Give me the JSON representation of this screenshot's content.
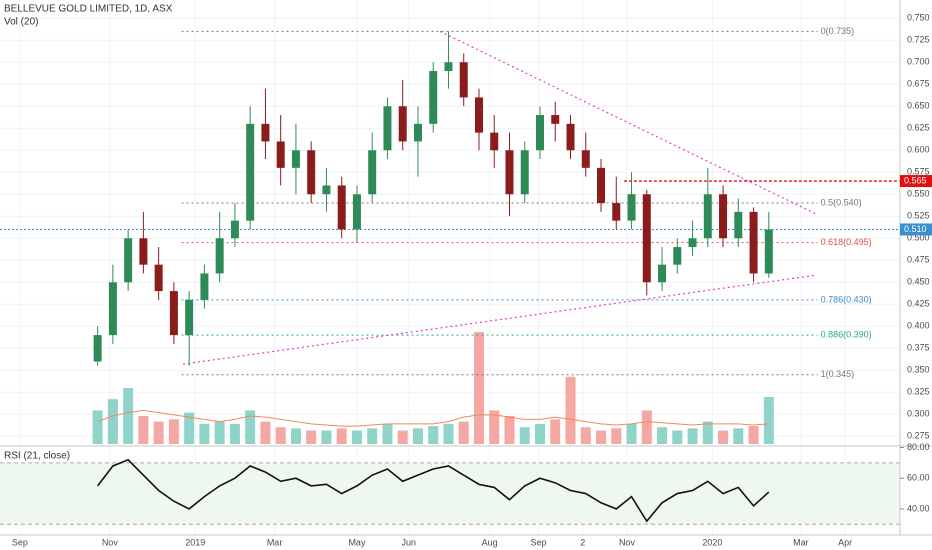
{
  "chart_data": {
    "type": "candlestick",
    "title": "BELLEVUE GOLD LIMITED, 1D, ASX",
    "volume_title": "Vol (20)",
    "rsi_title": "RSI (21, close)",
    "up_color": "#2e8b57",
    "down_color": "#8b1c1c",
    "volume_up_color": "#8fd3c9",
    "volume_down_color": "#f4a7a3",
    "volume_ma_color": "#f08a5d",
    "rsi_color": "#111111",
    "xlim": [
      -6.4,
      52.6
    ],
    "xticks": [
      {
        "value": -5.1,
        "label": "Sep"
      },
      {
        "value": 0.8,
        "label": "Nov"
      },
      {
        "value": 6.4,
        "label": "2019"
      },
      {
        "value": 11.6,
        "label": "Mar"
      },
      {
        "value": 17.0,
        "label": "May"
      },
      {
        "value": 20.4,
        "label": "Jun"
      },
      {
        "value": 25.7,
        "label": "Aug"
      },
      {
        "value": 28.9,
        "label": "Sep"
      },
      {
        "value": 31.8,
        "label": "2"
      },
      {
        "value": 34.7,
        "label": "Nov"
      },
      {
        "value": 40.3,
        "label": "2020"
      },
      {
        "value": 46.1,
        "label": "Mar"
      },
      {
        "value": 49.0,
        "label": "Apr"
      }
    ],
    "ylim": [
      0.264,
      0.765
    ],
    "yticks": [
      {
        "value": 0.275,
        "label": "0.275"
      },
      {
        "value": 0.3,
        "label": "0.300"
      },
      {
        "value": 0.325,
        "label": "0.325"
      },
      {
        "value": 0.35,
        "label": "0.350"
      },
      {
        "value": 0.375,
        "label": "0.375"
      },
      {
        "value": 0.4,
        "label": "0.400"
      },
      {
        "value": 0.425,
        "label": "0.425"
      },
      {
        "value": 0.45,
        "label": "0.450"
      },
      {
        "value": 0.475,
        "label": "0.475"
      },
      {
        "value": 0.5,
        "label": "0.500"
      },
      {
        "value": 0.525,
        "label": "0.525"
      },
      {
        "value": 0.55,
        "label": "0.550"
      },
      {
        "value": 0.575,
        "label": "0.575"
      },
      {
        "value": 0.6,
        "label": "0.600"
      },
      {
        "value": 0.625,
        "label": "0.625"
      },
      {
        "value": 0.65,
        "label": "0.650"
      },
      {
        "value": 0.675,
        "label": "0.675"
      },
      {
        "value": 0.7,
        "label": "0.700"
      },
      {
        "value": 0.725,
        "label": "0.725"
      },
      {
        "value": 0.75,
        "label": "0.750"
      }
    ],
    "ohlc": [
      [
        0.36,
        0.4,
        0.355,
        0.39
      ],
      [
        0.39,
        0.47,
        0.38,
        0.45
      ],
      [
        0.45,
        0.51,
        0.44,
        0.5
      ],
      [
        0.5,
        0.53,
        0.46,
        0.47
      ],
      [
        0.47,
        0.49,
        0.43,
        0.44
      ],
      [
        0.44,
        0.45,
        0.38,
        0.39
      ],
      [
        0.39,
        0.44,
        0.355,
        0.43
      ],
      [
        0.43,
        0.47,
        0.42,
        0.46
      ],
      [
        0.46,
        0.53,
        0.45,
        0.5
      ],
      [
        0.5,
        0.54,
        0.49,
        0.52
      ],
      [
        0.52,
        0.65,
        0.51,
        0.63
      ],
      [
        0.63,
        0.67,
        0.59,
        0.61
      ],
      [
        0.61,
        0.64,
        0.56,
        0.58
      ],
      [
        0.58,
        0.63,
        0.55,
        0.6
      ],
      [
        0.6,
        0.61,
        0.54,
        0.55
      ],
      [
        0.55,
        0.58,
        0.53,
        0.56
      ],
      [
        0.56,
        0.57,
        0.5,
        0.51
      ],
      [
        0.51,
        0.56,
        0.495,
        0.55
      ],
      [
        0.55,
        0.62,
        0.54,
        0.6
      ],
      [
        0.6,
        0.66,
        0.59,
        0.65
      ],
      [
        0.65,
        0.68,
        0.6,
        0.61
      ],
      [
        0.61,
        0.65,
        0.57,
        0.63
      ],
      [
        0.63,
        0.7,
        0.62,
        0.69
      ],
      [
        0.69,
        0.735,
        0.67,
        0.7
      ],
      [
        0.7,
        0.71,
        0.65,
        0.66
      ],
      [
        0.66,
        0.67,
        0.6,
        0.62
      ],
      [
        0.62,
        0.64,
        0.58,
        0.6
      ],
      [
        0.6,
        0.62,
        0.525,
        0.55
      ],
      [
        0.55,
        0.61,
        0.54,
        0.6
      ],
      [
        0.6,
        0.65,
        0.59,
        0.64
      ],
      [
        0.64,
        0.655,
        0.61,
        0.63
      ],
      [
        0.63,
        0.64,
        0.59,
        0.6
      ],
      [
        0.6,
        0.62,
        0.57,
        0.58
      ],
      [
        0.58,
        0.59,
        0.53,
        0.54
      ],
      [
        0.54,
        0.57,
        0.51,
        0.52
      ],
      [
        0.52,
        0.575,
        0.51,
        0.55
      ],
      [
        0.55,
        0.555,
        0.435,
        0.45
      ],
      [
        0.45,
        0.49,
        0.44,
        0.47
      ],
      [
        0.47,
        0.5,
        0.46,
        0.49
      ],
      [
        0.49,
        0.52,
        0.48,
        0.5
      ],
      [
        0.5,
        0.58,
        0.49,
        0.55
      ],
      [
        0.55,
        0.56,
        0.49,
        0.5
      ],
      [
        0.5,
        0.545,
        0.49,
        0.53
      ],
      [
        0.53,
        0.535,
        0.45,
        0.46
      ],
      [
        0.46,
        0.53,
        0.455,
        0.51
      ]
    ],
    "volume": [
      30,
      40,
      50,
      25,
      20,
      22,
      28,
      18,
      20,
      18,
      30,
      20,
      15,
      14,
      12,
      12,
      14,
      12,
      14,
      18,
      12,
      14,
      16,
      18,
      20,
      100,
      30,
      25,
      15,
      18,
      22,
      60,
      15,
      12,
      14,
      18,
      30,
      15,
      12,
      14,
      20,
      12,
      14,
      16,
      42
    ],
    "volume_ma": [
      20,
      25,
      28,
      30,
      28,
      26,
      24,
      22,
      20,
      22,
      25,
      24,
      22,
      20,
      18,
      17,
      16,
      16,
      17,
      18,
      18,
      18,
      18,
      20,
      24,
      26,
      26,
      24,
      22,
      22,
      24,
      22,
      20,
      18,
      17,
      18,
      20,
      19,
      18,
      17,
      18,
      18,
      18,
      17,
      18
    ],
    "volume_max": 100,
    "rsi": [
      55,
      68,
      72,
      62,
      52,
      45,
      40,
      48,
      55,
      60,
      68,
      64,
      58,
      60,
      55,
      56,
      50,
      55,
      62,
      66,
      58,
      62,
      66,
      68,
      62,
      56,
      54,
      46,
      55,
      60,
      57,
      52,
      50,
      44,
      40,
      48,
      32,
      44,
      50,
      52,
      58,
      50,
      54,
      42,
      51
    ],
    "rsi_lim": [
      23,
      81
    ],
    "rsi_band": [
      70,
      30
    ],
    "rsi_ticks": [
      {
        "value": 80,
        "label": "80.00"
      },
      {
        "value": 60,
        "label": "60.00"
      },
      {
        "value": 40,
        "label": "40.00"
      }
    ],
    "fib": [
      {
        "label": "0(0.735)",
        "value": 0.735,
        "color": "#777777"
      },
      {
        "label": "0.5(0.540)",
        "value": 0.54,
        "color": "#777777"
      },
      {
        "label": "0.618(0.495)",
        "value": 0.495,
        "color": "#e05050"
      },
      {
        "label": "0.786(0.430)",
        "value": 0.43,
        "color": "#3a8fd0"
      },
      {
        "label": "0.886(0.390)",
        "value": 0.39,
        "color": "#2aa88a"
      },
      {
        "label": "1(0.345)",
        "value": 0.345,
        "color": "#777777"
      }
    ],
    "fib_start": 5.5,
    "fib_end": 47.2,
    "trendlines": [
      {
        "from": [
          22.45,
          0.735
        ],
        "to": [
          47.05,
          0.528
        ]
      },
      {
        "from": [
          5.6,
          0.357
        ],
        "to": [
          47.05,
          0.458
        ]
      }
    ],
    "trend_color": "#e040c0",
    "resistance": {
      "value": 0.565,
      "label": "0.565",
      "start": 34.5,
      "color": "#e01010"
    },
    "last_price": {
      "value": 0.51,
      "label": "0.510",
      "color": "#3a8fd0"
    }
  }
}
